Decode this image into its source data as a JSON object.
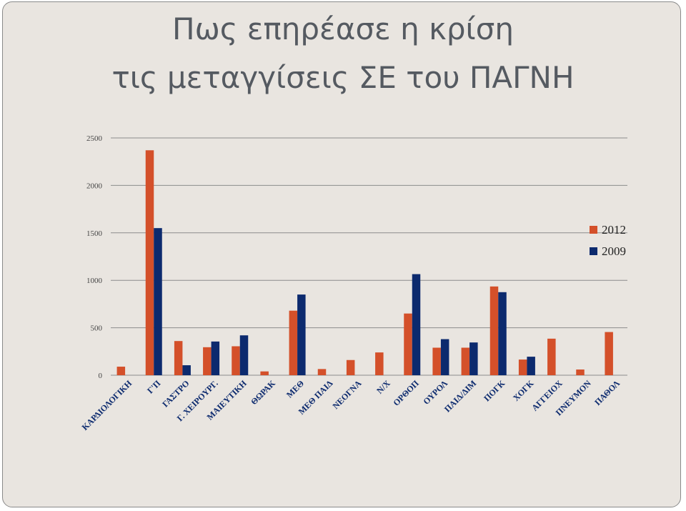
{
  "slide": {
    "title_line1": "Πως επηρέασε η κρίση",
    "title_line2": "τις μεταγγίσεις ΣΕ του ΠΑΓΝΗ"
  },
  "chart_data": {
    "type": "bar",
    "categories": [
      "ΚΑΡΔΙΟΛΟΓΙΚΗ",
      "Γ'Π",
      "ΓΑΣΤΡΟ",
      "Γ. ΧΕΙΡΟΥΡΓ.",
      "ΜΑΙΕΥΤΙΚΗ",
      "ΘΩΡΑΚ",
      "ΜΕΘ",
      "ΜΕΘ ΠΑΙΔ",
      "ΝΕΟΓΝΑ",
      "Ν/Χ",
      "ΟΡΘΟΠ",
      "ΟΥΡΟΛ",
      "ΠΑΙΔ/ΔΙΜ",
      "ΠΟΓΚ",
      "ΧΟΓΚ",
      "ΑΓΓΕΙΟΧ",
      "ΠΝΕΥΜΟΝ",
      "ΠΑΘΟΛ"
    ],
    "series": [
      {
        "name": "2012",
        "color": "#d4502a",
        "values": [
          90,
          2370,
          360,
          295,
          305,
          40,
          680,
          65,
          160,
          240,
          650,
          290,
          290,
          935,
          165,
          385,
          60,
          455
        ]
      },
      {
        "name": "2009",
        "color": "#0c2a6e",
        "values": [
          null,
          1550,
          105,
          355,
          420,
          null,
          850,
          null,
          null,
          null,
          1065,
          380,
          345,
          875,
          195,
          null,
          null,
          null
        ]
      }
    ],
    "y_ticks": [
      "0",
      "500",
      "1000",
      "1500",
      "2000",
      "2500"
    ],
    "ylim": [
      0,
      2500
    ],
    "grid": true,
    "legend": "right"
  }
}
